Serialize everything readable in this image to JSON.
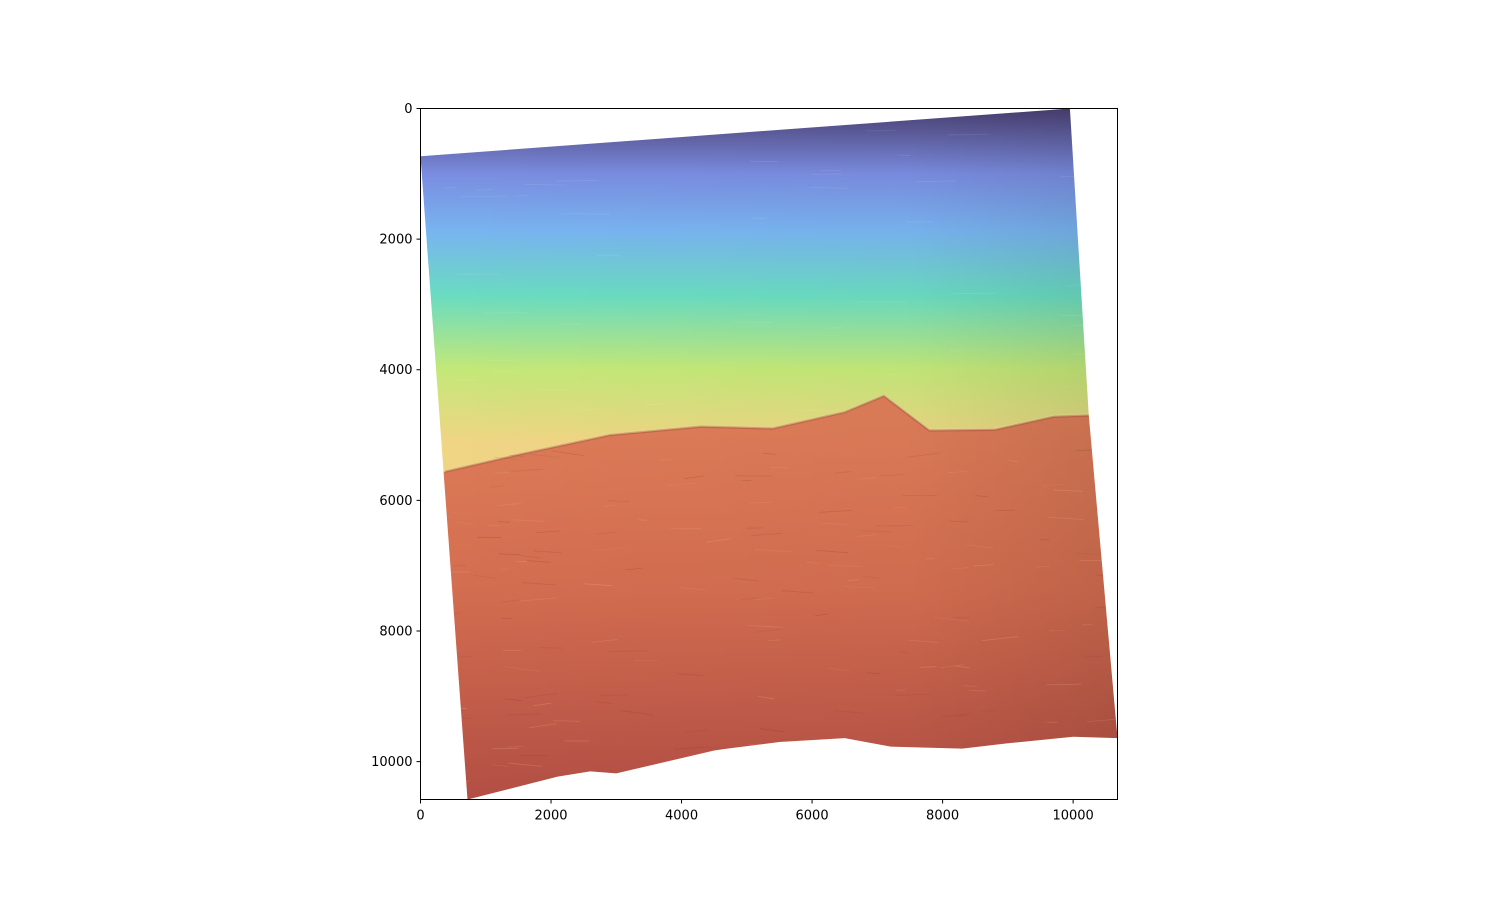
{
  "chart_data": {
    "type": "heatmap",
    "title": "",
    "xlabel": "",
    "ylabel": "",
    "xlim": [
      0,
      10680
    ],
    "ylim": [
      10580,
      0
    ],
    "y_axis_inverted": true,
    "grid": false,
    "x_ticks": [
      {
        "value": 0,
        "label": "0"
      },
      {
        "value": 2000,
        "label": "2000"
      },
      {
        "value": 4000,
        "label": "4000"
      },
      {
        "value": 6000,
        "label": "6000"
      },
      {
        "value": 8000,
        "label": "8000"
      },
      {
        "value": 10000,
        "label": "10000"
      }
    ],
    "y_ticks": [
      {
        "value": 0,
        "label": "0"
      },
      {
        "value": 2000,
        "label": "2000"
      },
      {
        "value": 4000,
        "label": "4000"
      },
      {
        "value": 6000,
        "label": "6000"
      },
      {
        "value": 8000,
        "label": "8000"
      },
      {
        "value": 10000,
        "label": "10000"
      }
    ],
    "raster_footprint": [
      [
        0,
        730
      ],
      [
        9950,
        0
      ],
      [
        10240,
        4700
      ],
      [
        10680,
        9640
      ],
      [
        10000,
        9620
      ],
      [
        9000,
        9720
      ],
      [
        8300,
        9800
      ],
      [
        7200,
        9770
      ],
      [
        6500,
        9640
      ],
      [
        5500,
        9700
      ],
      [
        4700,
        9800
      ],
      [
        4500,
        9830
      ],
      [
        3000,
        10180
      ],
      [
        2600,
        10150
      ],
      [
        2100,
        10230
      ],
      [
        720,
        10580
      ]
    ],
    "ridge_line": [
      [
        380,
        5560
      ],
      [
        1500,
        5300
      ],
      [
        2900,
        5000
      ],
      [
        4300,
        4870
      ],
      [
        5400,
        4900
      ],
      [
        6500,
        4650
      ],
      [
        7100,
        4400
      ],
      [
        7800,
        4930
      ],
      [
        8800,
        4920
      ],
      [
        9700,
        4720
      ],
      [
        10240,
        4700
      ]
    ],
    "colormap": "turbo",
    "colormap_stops": [
      "#4b3f72",
      "#7a8ce0",
      "#78b4f0",
      "#6adcc0",
      "#c3e878",
      "#efd584",
      "#dd7c58",
      "#c06048",
      "#a8443e"
    ]
  }
}
